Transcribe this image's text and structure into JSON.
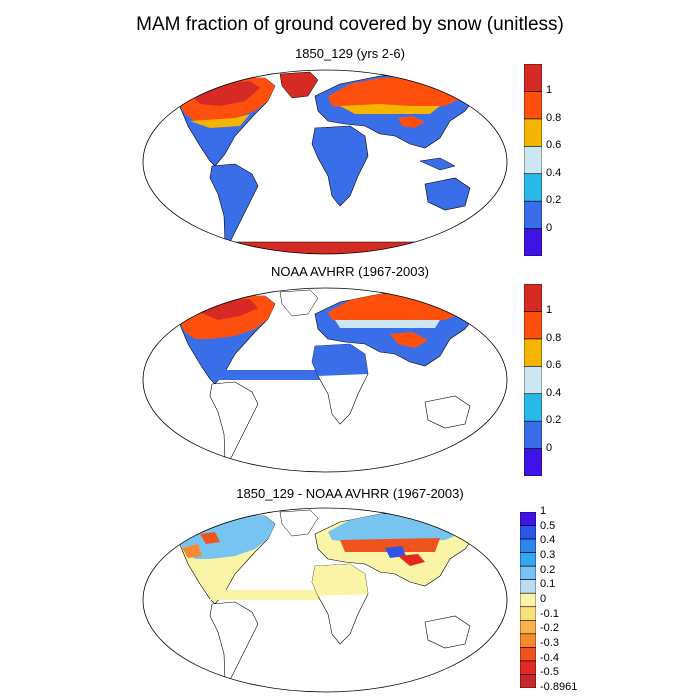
{
  "figure": {
    "title": "MAM fraction of ground covered by snow (unitless)"
  },
  "panels": [
    {
      "title": "1850_129 (yrs 2-6)",
      "colorbar": {
        "colors": [
          "#3f13e6",
          "#3a6ee8",
          "#29b9e9",
          "#cde7f2",
          "#f4b400",
          "#ff4f0d",
          "#d62a24"
        ],
        "labels": [
          "0",
          "0.2",
          "0.4",
          "0.6",
          "0.8",
          "1"
        ]
      }
    },
    {
      "title": "NOAA AVHRR (1967-2003)",
      "colorbar": {
        "colors": [
          "#3f13e6",
          "#3a6ee8",
          "#29b9e9",
          "#cde7f2",
          "#f4b400",
          "#ff4f0d",
          "#d62a24"
        ],
        "labels": [
          "0",
          "0.2",
          "0.4",
          "0.6",
          "0.8",
          "1"
        ]
      }
    },
    {
      "title": "1850_129 - NOAA AVHRR (1967-2003)",
      "colorbar": {
        "colors": [
          "#3f13e6",
          "#2e55e8",
          "#2e86f0",
          "#33a6ee",
          "#77c4f0",
          "#bcdcf2",
          "#faf4a6",
          "#fbe07a",
          "#f9b24b",
          "#f58b2e",
          "#f0541e",
          "#e22a20",
          "#c8262a"
        ],
        "labels": [
          "1",
          "0.5",
          "0.4",
          "0.3",
          "0.2",
          "0.1",
          "0",
          "-0.1",
          "-0.2",
          "-0.3",
          "-0.4",
          "-0.5",
          "-0.8961"
        ]
      }
    }
  ]
}
